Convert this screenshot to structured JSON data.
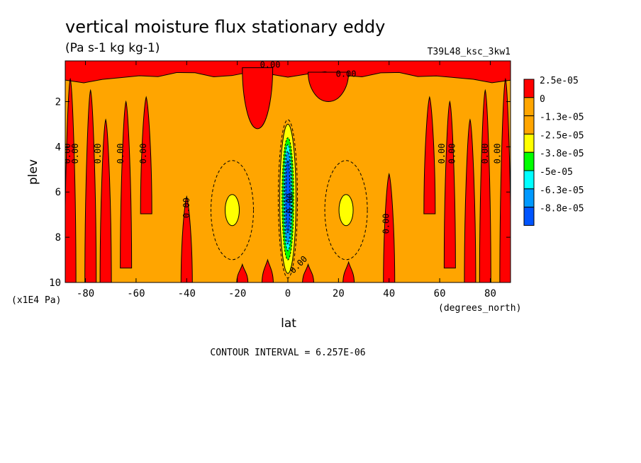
{
  "chart_data": {
    "type": "contour",
    "title": "vertical moisture flux stationary eddy",
    "units": "(Pa s-1 kg kg-1)",
    "run_label": "T39L48_ksc_3kw1",
    "xlabel": "lat",
    "x_units": "(degrees_north)",
    "ylabel": "plev",
    "y_units": "(x1E4 Pa)",
    "xlim": [
      -88,
      88
    ],
    "ylim": [
      10,
      0.2
    ],
    "x_ticks": [
      -80,
      -60,
      -40,
      -20,
      0,
      20,
      40,
      60,
      80
    ],
    "x_tick_labels": [
      "-80",
      "-60",
      "-40",
      "-20",
      "0",
      "20",
      "40",
      "60",
      "80"
    ],
    "y_ticks": [
      2,
      4,
      6,
      8,
      10
    ],
    "y_tick_labels": [
      "2",
      "4",
      "6",
      "8",
      "10"
    ],
    "contour_interval_text": "CONTOUR INTERVAL = 6.257E-06",
    "contour_label": "0.00",
    "legend": {
      "placement": "right",
      "levels": [
        "2.5e-05",
        "0",
        "-1.3e-05",
        "-2.5e-05",
        "-3.8e-05",
        "-5e-05",
        "-6.3e-05",
        "-8.8e-05"
      ],
      "colors": [
        "#ff0000",
        "#ffa500",
        "#ffa500",
        "#ffff00",
        "#00ff00",
        "#00ffff",
        "#0099ff",
        "#0055ff"
      ]
    },
    "regions": {
      "positive_color": "#ff0000",
      "background_color": "#ffa500",
      "positive_columns": [
        {
          "lat": -86,
          "top": 1.0,
          "bottom": 10
        },
        {
          "lat": -78,
          "top": 1.5,
          "bottom": 10
        },
        {
          "lat": -72,
          "top": 2.8,
          "bottom": 10
        },
        {
          "lat": -64,
          "top": 2.0,
          "bottom": 9.3
        },
        {
          "lat": -56,
          "top": 1.8,
          "bottom": 6.9
        },
        {
          "lat": -40,
          "top": 6.2,
          "bottom": 10
        },
        {
          "lat": -18,
          "top": 9.2,
          "bottom": 10
        },
        {
          "lat": -8,
          "top": 9.0,
          "bottom": 10
        },
        {
          "lat": 8,
          "top": 9.2,
          "bottom": 10
        },
        {
          "lat": 24,
          "top": 9.1,
          "bottom": 10
        },
        {
          "lat": 40,
          "top": 5.2,
          "bottom": 10
        },
        {
          "lat": 56,
          "top": 1.8,
          "bottom": 6.9
        },
        {
          "lat": 64,
          "top": 2.0,
          "bottom": 9.3
        },
        {
          "lat": 72,
          "top": 2.8,
          "bottom": 10
        },
        {
          "lat": 78,
          "top": 1.5,
          "bottom": 10
        },
        {
          "lat": 86,
          "top": 1.0,
          "bottom": 10
        }
      ],
      "top_band": {
        "lat_range": [
          -88,
          88
        ],
        "plev_range": [
          0.2,
          0.8
        ]
      },
      "upper_blob": {
        "lat_range": [
          -18,
          -6
        ],
        "plev_range": [
          0.5,
          3.2
        ]
      },
      "upper_blob_2": {
        "lat_range": [
          8,
          24
        ],
        "plev_range": [
          0.7,
          2.0
        ]
      },
      "negative_core": {
        "lat": 0,
        "layers": [
          {
            "color": "#ffff00",
            "lat_halfwidth": 3.2,
            "plev_range": [
              3.0,
              9.6
            ]
          },
          {
            "color": "#00ff00",
            "lat_halfwidth": 2.3,
            "plev_range": [
              3.6,
              9.0
            ]
          },
          {
            "color": "#00ffff",
            "lat_halfwidth": 1.7,
            "plev_range": [
              3.9,
              8.6
            ]
          },
          {
            "color": "#0099ff",
            "lat_halfwidth": 1.3,
            "plev_range": [
              4.2,
              8.3
            ]
          },
          {
            "color": "#0055ff",
            "lat_halfwidth": 0.8,
            "plev_range": [
              4.6,
              7.8
            ]
          }
        ]
      },
      "side_minima": [
        {
          "lat": -22,
          "plev": 6.8,
          "color": "#ffff00"
        },
        {
          "lat": 23,
          "plev": 6.8,
          "color": "#ffff00"
        }
      ]
    }
  }
}
